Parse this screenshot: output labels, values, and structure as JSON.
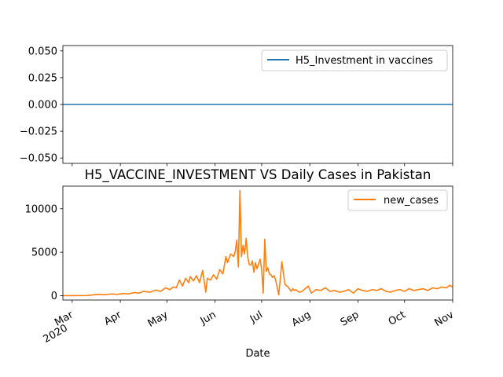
{
  "chart_data": [
    {
      "type": "line",
      "title": "",
      "xlabel": "",
      "ylabel": "",
      "ylim": [
        -0.055,
        0.055
      ],
      "yticks": [
        0.05,
        0.025,
        0.0,
        -0.025,
        -0.05
      ],
      "ytick_labels": [
        "0.050",
        "0.025",
        "0.000",
        "−0.025",
        "−0.050"
      ],
      "legend": {
        "placement": "upper right"
      },
      "series": [
        {
          "name": "H5_Investment in vaccines",
          "color": "#1f77b4",
          "x": [
            "2020-02-24",
            "2020-11-01"
          ],
          "values": [
            0,
            0
          ]
        }
      ]
    },
    {
      "type": "line",
      "title": "H5_VACCINE_INVESTMENT VS Daily Cases in Pakistan",
      "xlabel": "Date",
      "ylabel": "",
      "ylim": [
        -500,
        12600
      ],
      "yticks": [
        0,
        5000,
        10000
      ],
      "ytick_labels": [
        "0",
        "5000",
        "10000"
      ],
      "xlim": [
        "2020-02-24",
        "2020-11-01"
      ],
      "xticks": [
        {
          "date": "2020-03-01",
          "label": "Mar",
          "sublabel": "2020"
        },
        {
          "date": "2020-04-01",
          "label": "Apr"
        },
        {
          "date": "2020-05-01",
          "label": "May"
        },
        {
          "date": "2020-06-01",
          "label": "Jun"
        },
        {
          "date": "2020-07-01",
          "label": "Jul"
        },
        {
          "date": "2020-08-01",
          "label": "Aug"
        },
        {
          "date": "2020-09-01",
          "label": "Sep"
        },
        {
          "date": "2020-10-01",
          "label": "Oct"
        },
        {
          "date": "2020-11-01",
          "label": "Nov"
        }
      ],
      "legend": {
        "placement": "upper right"
      },
      "series": [
        {
          "name": "new_cases",
          "color": "#ff7f0e",
          "x": [
            "2020-02-24",
            "2020-03-10",
            "2020-03-18",
            "2020-03-22",
            "2020-03-26",
            "2020-03-30",
            "2020-04-03",
            "2020-04-06",
            "2020-04-10",
            "2020-04-13",
            "2020-04-16",
            "2020-04-20",
            "2020-04-24",
            "2020-04-27",
            "2020-04-30",
            "2020-05-03",
            "2020-05-05",
            "2020-05-07",
            "2020-05-09",
            "2020-05-11",
            "2020-05-13",
            "2020-05-15",
            "2020-05-16",
            "2020-05-18",
            "2020-05-20",
            "2020-05-22",
            "2020-05-24",
            "2020-05-26",
            "2020-05-27",
            "2020-05-29",
            "2020-05-31",
            "2020-06-02",
            "2020-06-04",
            "2020-06-06",
            "2020-06-08",
            "2020-06-09",
            "2020-06-11",
            "2020-06-13",
            "2020-06-14",
            "2020-06-15",
            "2020-06-16",
            "2020-06-17",
            "2020-06-18",
            "2020-06-19",
            "2020-06-20",
            "2020-06-21",
            "2020-06-22",
            "2020-06-23",
            "2020-06-24",
            "2020-06-25",
            "2020-06-26",
            "2020-06-27",
            "2020-06-28",
            "2020-06-30",
            "2020-07-01",
            "2020-07-02",
            "2020-07-03",
            "2020-07-04",
            "2020-07-05",
            "2020-07-06",
            "2020-07-07",
            "2020-07-08",
            "2020-07-09",
            "2020-07-10",
            "2020-07-12",
            "2020-07-14",
            "2020-07-16",
            "2020-07-18",
            "2020-07-20",
            "2020-07-21",
            "2020-07-22",
            "2020-07-23",
            "2020-07-25",
            "2020-07-27",
            "2020-07-29",
            "2020-07-31",
            "2020-08-02",
            "2020-08-05",
            "2020-08-08",
            "2020-08-11",
            "2020-08-14",
            "2020-08-17",
            "2020-08-20",
            "2020-08-23",
            "2020-08-26",
            "2020-08-29",
            "2020-09-01",
            "2020-09-04",
            "2020-09-07",
            "2020-09-10",
            "2020-09-13",
            "2020-09-16",
            "2020-09-19",
            "2020-09-22",
            "2020-09-25",
            "2020-09-28",
            "2020-10-01",
            "2020-10-04",
            "2020-10-07",
            "2020-10-10",
            "2020-10-13",
            "2020-10-16",
            "2020-10-19",
            "2020-10-22",
            "2020-10-25",
            "2020-10-28",
            "2020-10-30",
            "2020-11-01"
          ],
          "values": [
            0,
            10,
            150,
            100,
            200,
            150,
            250,
            200,
            350,
            300,
            500,
            400,
            650,
            500,
            900,
            700,
            1000,
            900,
            1800,
            1100,
            2000,
            1500,
            2200,
            1700,
            2300,
            1500,
            2900,
            400,
            2000,
            1800,
            2400,
            1900,
            3000,
            2500,
            4500,
            3800,
            4800,
            4500,
            5100,
            6400,
            3300,
            12100,
            4500,
            5800,
            4800,
            6600,
            4500,
            3600,
            3500,
            4000,
            2700,
            3800,
            3100,
            4200,
            3000,
            300,
            6500,
            2800,
            3200,
            2500,
            2400,
            2100,
            2300,
            1800,
            100,
            3900,
            1300,
            1000,
            500,
            800,
            600,
            700,
            400,
            500,
            800,
            1100,
            300,
            700,
            600,
            900,
            500,
            600,
            400,
            500,
            700,
            300,
            800,
            600,
            500,
            700,
            600,
            800,
            500,
            400,
            600,
            700,
            500,
            800,
            600,
            700,
            800,
            600,
            900,
            800,
            1000,
            900,
            1200,
            1000
          ]
        }
      ]
    }
  ]
}
